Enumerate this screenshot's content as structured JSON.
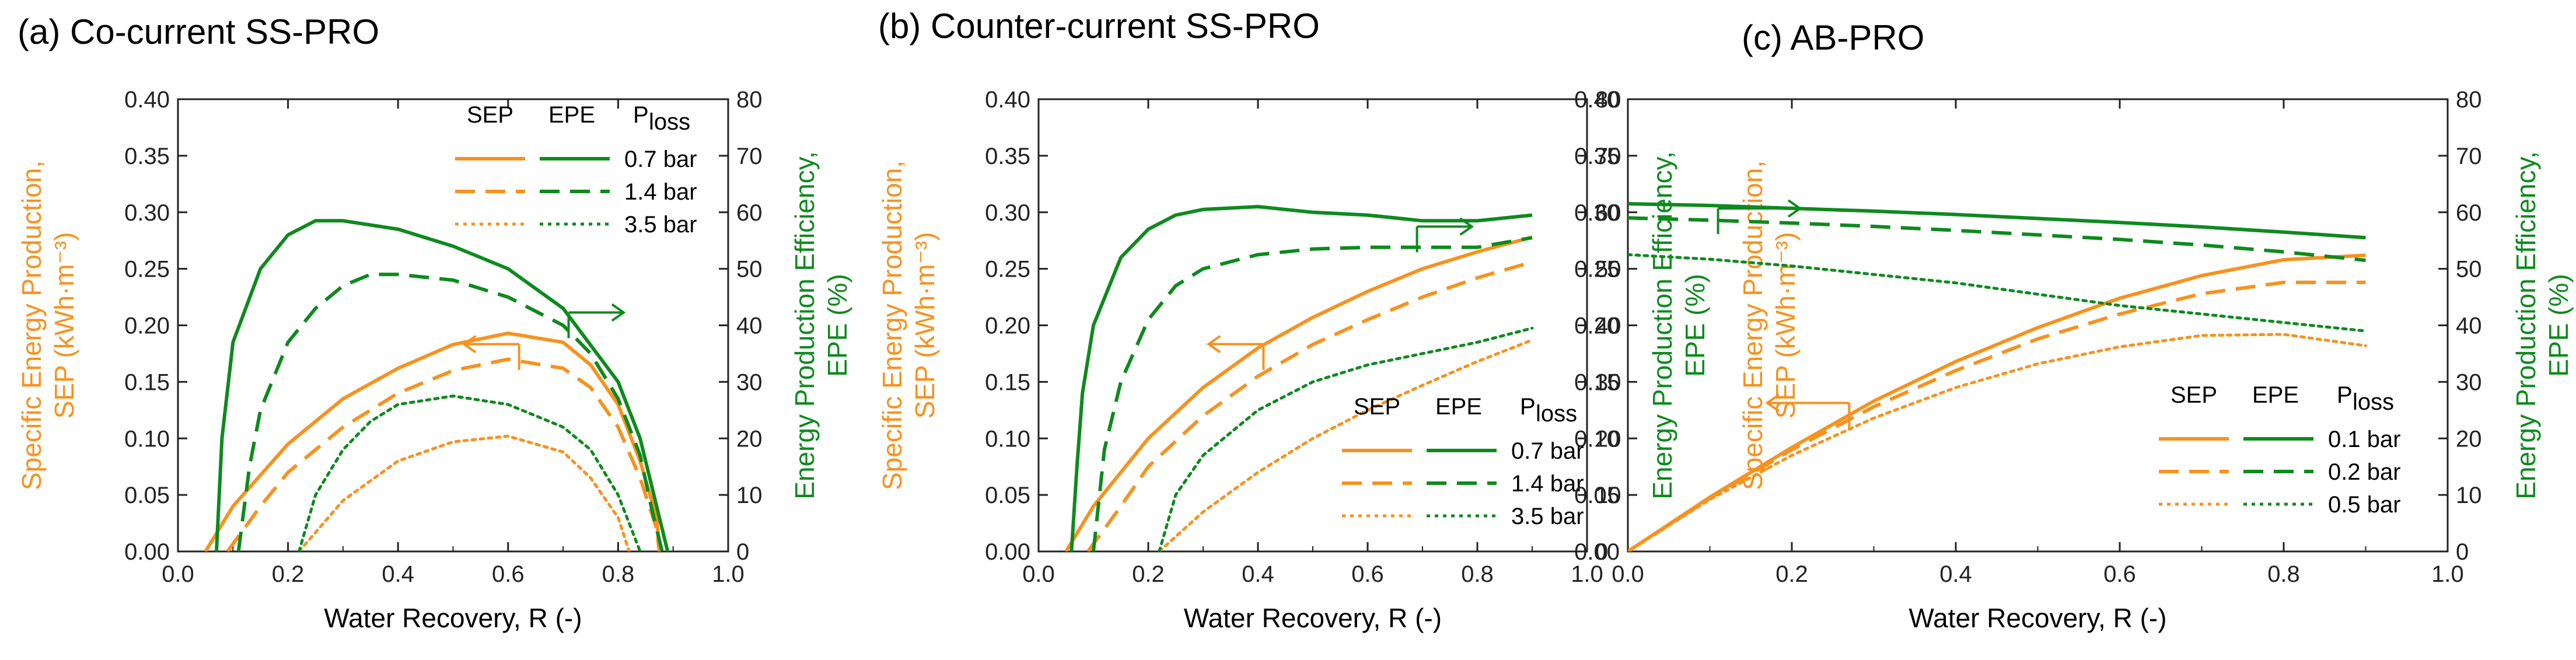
{
  "colors": {
    "sep": "#F7921E",
    "epe": "#0E8A1E",
    "axis": "#222222"
  },
  "chart_data": [
    {
      "type": "line",
      "title": "(a)  Co-current SS-PRO",
      "xlabel": "Water Recovery, R (-)",
      "ylabel": [
        "Specific Energy Production,",
        "SEP (kWh·m⁻³)"
      ],
      "y2label": [
        "Energy Production Efficiency,",
        "EPE (%)"
      ],
      "xlim": [
        0,
        1
      ],
      "ylim": [
        0,
        0.4
      ],
      "y2lim": [
        0,
        80
      ],
      "xticks": [
        "0.0",
        "0.2",
        "0.4",
        "0.6",
        "0.8",
        "1.0"
      ],
      "yticks": [
        "0.00",
        "0.05",
        "0.10",
        "0.15",
        "0.20",
        "0.25",
        "0.30",
        "0.35",
        "0.40"
      ],
      "y2ticks": [
        "0",
        "10",
        "20",
        "30",
        "40",
        "50",
        "60",
        "70",
        "80"
      ],
      "legend": {
        "position": "top-right",
        "headers": [
          "SEP",
          "EPE",
          "P",
          "loss"
        ],
        "entries": [
          "0.7 bar",
          "1.4 bar",
          "3.5 bar"
        ]
      },
      "series": [
        {
          "name": "SEP 0.7 bar",
          "metric": "SEP",
          "axis": "left",
          "style": "solid",
          "x": [
            0.05,
            0.1,
            0.2,
            0.3,
            0.4,
            0.5,
            0.6,
            0.7,
            0.75,
            0.8,
            0.84,
            0.87,
            0.875
          ],
          "y": [
            0,
            0.04,
            0.095,
            0.135,
            0.162,
            0.183,
            0.193,
            0.185,
            0.165,
            0.13,
            0.08,
            0.03,
            0
          ]
        },
        {
          "name": "SEP 1.4 bar",
          "metric": "SEP",
          "axis": "left",
          "style": "dashed",
          "x": [
            0.09,
            0.15,
            0.2,
            0.3,
            0.4,
            0.5,
            0.6,
            0.7,
            0.75,
            0.8,
            0.84,
            0.87,
            0.875
          ],
          "y": [
            0,
            0.04,
            0.07,
            0.11,
            0.14,
            0.16,
            0.17,
            0.162,
            0.145,
            0.11,
            0.065,
            0.02,
            0
          ]
        },
        {
          "name": "SEP 3.5 bar",
          "metric": "SEP",
          "axis": "left",
          "style": "dotted",
          "x": [
            0.22,
            0.3,
            0.4,
            0.5,
            0.6,
            0.7,
            0.75,
            0.8,
            0.82
          ],
          "y": [
            0,
            0.045,
            0.08,
            0.097,
            0.102,
            0.088,
            0.065,
            0.03,
            0
          ]
        },
        {
          "name": "EPE 0.7 bar",
          "metric": "EPE",
          "axis": "right",
          "style": "solid",
          "x": [
            0.07,
            0.08,
            0.1,
            0.15,
            0.2,
            0.25,
            0.3,
            0.4,
            0.5,
            0.6,
            0.7,
            0.8,
            0.84,
            0.87,
            0.89
          ],
          "y": [
            0,
            20,
            37,
            50,
            56,
            58.5,
            58.5,
            57,
            54,
            50,
            43,
            30,
            20,
            8,
            0
          ]
        },
        {
          "name": "EPE 1.4 bar",
          "metric": "EPE",
          "axis": "right",
          "style": "dashed",
          "x": [
            0.11,
            0.13,
            0.15,
            0.2,
            0.25,
            0.3,
            0.35,
            0.4,
            0.5,
            0.6,
            0.7,
            0.75,
            0.8,
            0.84,
            0.86,
            0.88
          ],
          "y": [
            0,
            15,
            25,
            37,
            43,
            47,
            49,
            49,
            48,
            45,
            40,
            35,
            27,
            17,
            8,
            0
          ]
        },
        {
          "name": "EPE 3.5 bar",
          "metric": "EPE",
          "axis": "right",
          "style": "dotted",
          "x": [
            0.22,
            0.25,
            0.3,
            0.35,
            0.4,
            0.5,
            0.6,
            0.7,
            0.75,
            0.8,
            0.82,
            0.84
          ],
          "y": [
            0,
            10,
            18,
            23,
            26,
            27.5,
            26,
            22,
            18,
            10,
            5,
            0
          ]
        }
      ],
      "annotations": [
        {
          "text": "",
          "arrow": "left",
          "toward": "SEP"
        },
        {
          "text": "",
          "arrow": "right",
          "toward": "EPE"
        }
      ]
    },
    {
      "type": "line",
      "title": "(b)  Counter-current SS-PRO",
      "xlabel": "Water Recovery, R (-)",
      "ylabel": [
        "Specific Energy Production,",
        "SEP (kWh·m⁻³)"
      ],
      "y2label": [
        "Energy Production Efficiency,",
        "EPE (%)"
      ],
      "xlim": [
        0,
        1
      ],
      "ylim": [
        0,
        0.4
      ],
      "y2lim": [
        0,
        80
      ],
      "xticks": [
        "0.0",
        "0.2",
        "0.4",
        "0.6",
        "0.8",
        "1.0"
      ],
      "yticks": [
        "0.00",
        "0.05",
        "0.10",
        "0.15",
        "0.20",
        "0.25",
        "0.30",
        "0.35",
        "0.40"
      ],
      "y2ticks": [
        "0",
        "10",
        "20",
        "30",
        "40",
        "50",
        "60",
        "70",
        "80"
      ],
      "legend": {
        "position": "bottom-right",
        "headers": [
          "SEP",
          "EPE",
          "P",
          "loss"
        ],
        "entries": [
          "0.7 bar",
          "1.4 bar",
          "3.5 bar"
        ]
      },
      "series": [
        {
          "name": "SEP 0.7 bar",
          "metric": "SEP",
          "axis": "left",
          "style": "solid",
          "x": [
            0.05,
            0.1,
            0.2,
            0.3,
            0.4,
            0.5,
            0.6,
            0.7,
            0.8,
            0.9
          ],
          "y": [
            0,
            0.04,
            0.1,
            0.145,
            0.18,
            0.207,
            0.23,
            0.25,
            0.265,
            0.278
          ]
        },
        {
          "name": "SEP 1.4 bar",
          "metric": "SEP",
          "axis": "left",
          "style": "dashed",
          "x": [
            0.09,
            0.15,
            0.2,
            0.3,
            0.4,
            0.5,
            0.6,
            0.7,
            0.8,
            0.9
          ],
          "y": [
            0,
            0.04,
            0.075,
            0.12,
            0.155,
            0.183,
            0.205,
            0.225,
            0.242,
            0.256
          ]
        },
        {
          "name": "SEP 3.5 bar",
          "metric": "SEP",
          "axis": "left",
          "style": "dotted",
          "x": [
            0.22,
            0.3,
            0.4,
            0.5,
            0.6,
            0.7,
            0.8,
            0.9
          ],
          "y": [
            0,
            0.035,
            0.07,
            0.1,
            0.125,
            0.147,
            0.168,
            0.187
          ]
        },
        {
          "name": "EPE 0.7 bar",
          "metric": "EPE",
          "axis": "right",
          "style": "solid",
          "x": [
            0.06,
            0.07,
            0.08,
            0.1,
            0.15,
            0.2,
            0.25,
            0.3,
            0.4,
            0.5,
            0.6,
            0.7,
            0.8,
            0.9
          ],
          "y": [
            0,
            15,
            28,
            40,
            52,
            57,
            59.5,
            60.5,
            61,
            60,
            59.5,
            58.5,
            58.5,
            59.5
          ]
        },
        {
          "name": "EPE 1.4 bar",
          "metric": "EPE",
          "axis": "right",
          "style": "dashed",
          "x": [
            0.1,
            0.12,
            0.15,
            0.2,
            0.25,
            0.3,
            0.4,
            0.5,
            0.6,
            0.7,
            0.8,
            0.9
          ],
          "y": [
            0,
            18,
            30,
            41,
            47,
            50,
            52.5,
            53.5,
            53.8,
            53.8,
            53.8,
            55.5
          ]
        },
        {
          "name": "EPE 3.5 bar",
          "metric": "EPE",
          "axis": "right",
          "style": "dotted",
          "x": [
            0.22,
            0.25,
            0.3,
            0.4,
            0.5,
            0.6,
            0.7,
            0.8,
            0.9
          ],
          "y": [
            0,
            10,
            17,
            25,
            30,
            33,
            35,
            37,
            39.5
          ]
        }
      ],
      "annotations": [
        {
          "text": "",
          "arrow": "left",
          "toward": "SEP"
        },
        {
          "text": "",
          "arrow": "right",
          "toward": "EPE"
        }
      ]
    },
    {
      "type": "line",
      "title": "(c)  AB-PRO",
      "xlabel": "Water Recovery, R (-)",
      "ylabel": [
        "Specific Energy Production,",
        "SEP (kWh·m⁻³)"
      ],
      "y2label": [
        "Energy Production Efficiency,",
        "EPE (%)"
      ],
      "xlim": [
        0,
        1
      ],
      "ylim": [
        0,
        0.4
      ],
      "y2lim": [
        0,
        80
      ],
      "xticks": [
        "0.0",
        "0.2",
        "0.4",
        "0.6",
        "0.8",
        "1.0"
      ],
      "yticks": [
        "0.00",
        "0.05",
        "0.10",
        "0.15",
        "0.20",
        "0.25",
        "0.30",
        "0.35",
        "0.40"
      ],
      "y2ticks": [
        "0",
        "10",
        "20",
        "30",
        "40",
        "50",
        "60",
        "70",
        "80"
      ],
      "legend": {
        "position": "bottom-right",
        "headers": [
          "SEP",
          "EPE",
          "P",
          "loss"
        ],
        "entries": [
          "0.1 bar",
          "0.2 bar",
          "0.5 bar"
        ]
      },
      "series": [
        {
          "name": "SEP 0.1 bar",
          "metric": "SEP",
          "axis": "left",
          "style": "solid",
          "x": [
            0,
            0.1,
            0.2,
            0.3,
            0.4,
            0.5,
            0.6,
            0.7,
            0.8,
            0.9
          ],
          "y": [
            0,
            0.048,
            0.092,
            0.133,
            0.168,
            0.198,
            0.224,
            0.244,
            0.258,
            0.262
          ]
        },
        {
          "name": "SEP 0.2 bar",
          "metric": "SEP",
          "axis": "left",
          "style": "dashed",
          "x": [
            0,
            0.1,
            0.2,
            0.3,
            0.4,
            0.5,
            0.6,
            0.7,
            0.8,
            0.9
          ],
          "y": [
            0,
            0.047,
            0.09,
            0.128,
            0.16,
            0.188,
            0.21,
            0.228,
            0.238,
            0.238
          ]
        },
        {
          "name": "SEP 0.5 bar",
          "metric": "SEP",
          "axis": "left",
          "style": "dotted",
          "x": [
            0,
            0.1,
            0.2,
            0.3,
            0.4,
            0.5,
            0.6,
            0.7,
            0.8,
            0.9
          ],
          "y": [
            0,
            0.046,
            0.085,
            0.118,
            0.145,
            0.166,
            0.181,
            0.191,
            0.192,
            0.182
          ]
        },
        {
          "name": "EPE 0.1 bar",
          "metric": "EPE",
          "axis": "right",
          "style": "solid",
          "x": [
            0,
            0.1,
            0.2,
            0.3,
            0.4,
            0.5,
            0.6,
            0.7,
            0.8,
            0.9
          ],
          "y": [
            61.5,
            61.2,
            60.7,
            60.2,
            59.6,
            58.9,
            58.2,
            57.4,
            56.5,
            55.5
          ]
        },
        {
          "name": "EPE 0.2 bar",
          "metric": "EPE",
          "axis": "right",
          "style": "dashed",
          "x": [
            0,
            0.1,
            0.2,
            0.3,
            0.4,
            0.5,
            0.6,
            0.7,
            0.8,
            0.9
          ],
          "y": [
            59,
            58.6,
            58.1,
            57.5,
            56.8,
            56,
            55.2,
            54.2,
            53,
            51.5
          ]
        },
        {
          "name": "EPE 0.5 bar",
          "metric": "EPE",
          "axis": "right",
          "style": "dotted",
          "x": [
            0,
            0.1,
            0.2,
            0.3,
            0.4,
            0.5,
            0.6,
            0.7,
            0.8,
            0.9
          ],
          "y": [
            52.5,
            51.7,
            50.5,
            49,
            47.5,
            45.5,
            43.5,
            42,
            40.5,
            39
          ]
        }
      ],
      "annotations": [
        {
          "text": "",
          "arrow": "left",
          "toward": "SEP"
        },
        {
          "text": "",
          "arrow": "right",
          "toward": "EPE"
        }
      ]
    }
  ]
}
